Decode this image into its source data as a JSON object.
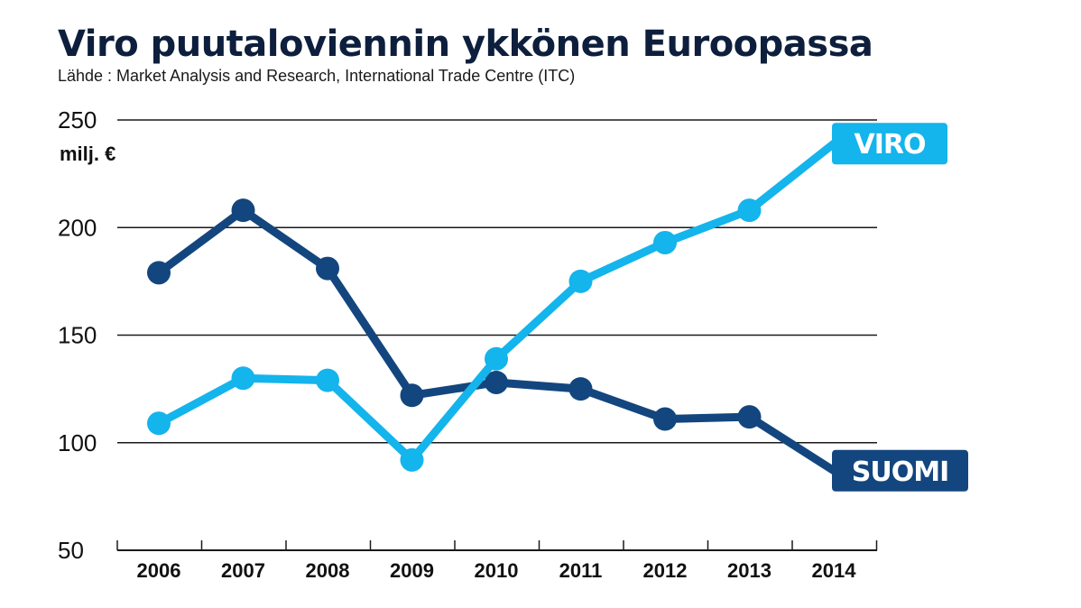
{
  "title": "Viro puutaloviennin ykkönen Euroopassa",
  "source": "Lähde : Market Analysis and Research, International Trade Centre (ITC)",
  "chart_data": {
    "type": "line",
    "unit_label": "milj. €",
    "x": [
      "2006",
      "2007",
      "2008",
      "2009",
      "2010",
      "2011",
      "2012",
      "2013",
      "2014"
    ],
    "ylim": [
      50,
      250
    ],
    "yticks": [
      50,
      100,
      150,
      200,
      250
    ],
    "grid": true,
    "series": [
      {
        "name": "SUOMI",
        "color": "#13467e",
        "values": [
          179,
          208,
          181,
          122,
          128,
          125,
          111,
          112,
          87
        ]
      },
      {
        "name": "VIRO",
        "color": "#14b4ec",
        "values": [
          109,
          130,
          129,
          92,
          139,
          175,
          193,
          208,
          239
        ]
      }
    ]
  }
}
